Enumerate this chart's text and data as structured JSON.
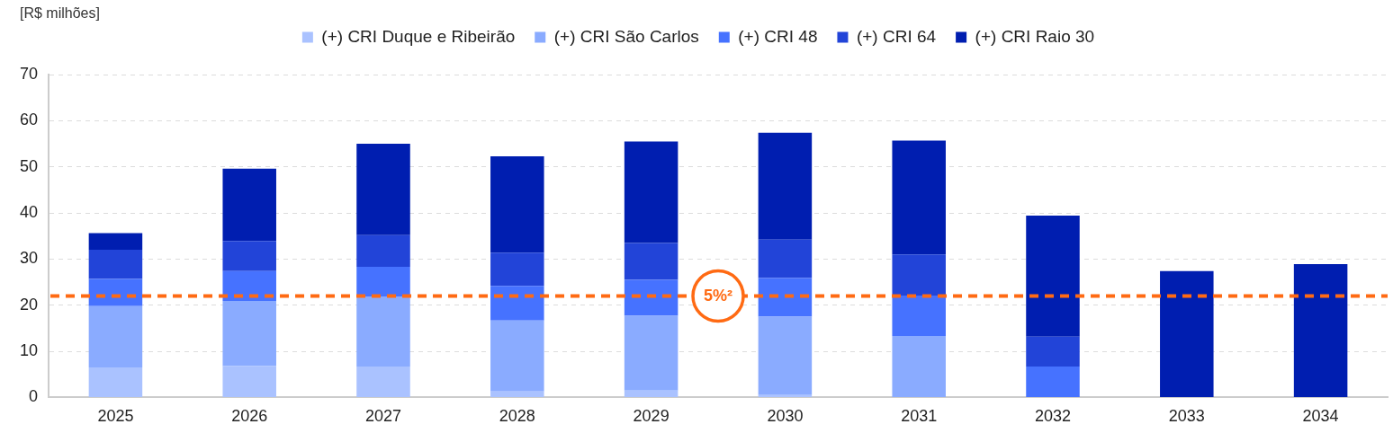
{
  "chart_data": {
    "type": "bar",
    "stacked": true,
    "ylabel": "[R$ milhões]",
    "categories": [
      "2025",
      "2026",
      "2027",
      "2028",
      "2029",
      "2030",
      "2031",
      "2032",
      "2033",
      "2034"
    ],
    "series": [
      {
        "name": "(+) CRI Duque e Ribeirão",
        "color": "#aac2ff",
        "values": [
          6.5,
          6.8,
          6.7,
          1.3,
          1.5,
          0.5,
          0,
          0,
          0,
          0
        ]
      },
      {
        "name": "(+) CRI São Carlos",
        "color": "#8aabff",
        "values": [
          13.3,
          14.1,
          15.2,
          15.4,
          16.2,
          17.0,
          13.3,
          0,
          0,
          0
        ]
      },
      {
        "name": "(+) CRI 48",
        "color": "#4672ff",
        "values": [
          5.9,
          6.5,
          6.4,
          7.5,
          7.8,
          8.4,
          8.8,
          6.7,
          0,
          0
        ]
      },
      {
        "name": "(+) CRI 64",
        "color": "#2244d8",
        "values": [
          6.3,
          6.5,
          6.9,
          7.2,
          8.0,
          8.3,
          8.9,
          6.5,
          0,
          0
        ]
      },
      {
        "name": "(+) CRI Raio 30",
        "color": "#001eb0",
        "values": [
          3.6,
          15.7,
          19.8,
          20.9,
          22.0,
          23.2,
          24.7,
          26.2,
          27.4,
          28.9
        ]
      }
    ],
    "ylim": [
      0,
      70
    ],
    "yticks": [
      0,
      10,
      20,
      30,
      40,
      50,
      60,
      70
    ],
    "grid": "y",
    "legend": "top",
    "ref_lines": [
      {
        "axis": "y",
        "value": 22,
        "color": "#ff6a13",
        "line_style": "dashed"
      }
    ],
    "annotations": [
      "5%²"
    ]
  }
}
